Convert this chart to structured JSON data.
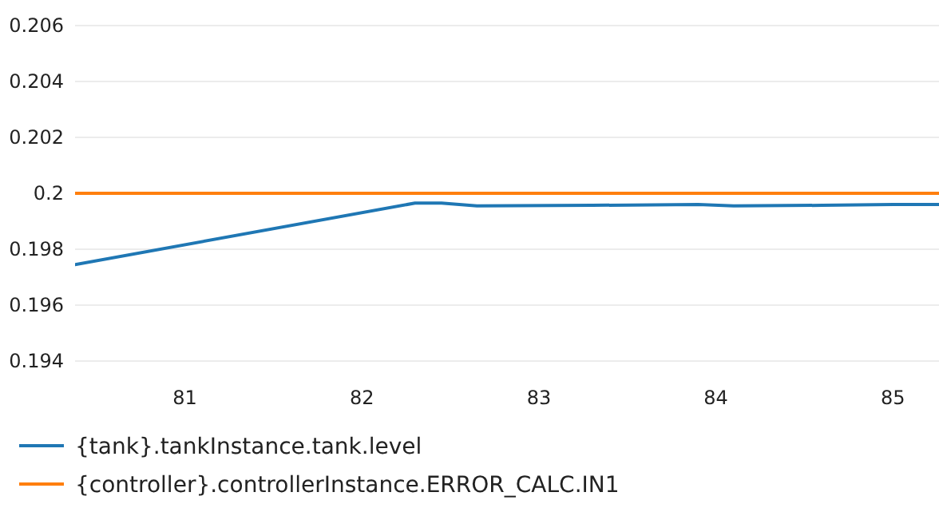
{
  "chart_data": {
    "type": "line",
    "xlim": [
      80.38,
      85.26
    ],
    "xticks": [
      81,
      82,
      83,
      84,
      85
    ],
    "ylim": [
      0.194,
      0.206
    ],
    "yticks": [
      0.194,
      0.196,
      0.198,
      0.2,
      0.202,
      0.204,
      0.206
    ],
    "grid": "y",
    "legend": "bottom",
    "marker": "none",
    "line_style": "solid",
    "series": [
      {
        "name": "{tank}.tankInstance.tank.level",
        "color": "#1f77b4",
        "x": [
          80.38,
          82.3,
          82.45,
          82.65,
          83.3,
          83.9,
          84.1,
          84.6,
          85.0,
          85.26
        ],
        "values": [
          0.19745,
          0.19965,
          0.19965,
          0.19955,
          0.19957,
          0.1996,
          0.19955,
          0.19957,
          0.1996,
          0.1996
        ]
      },
      {
        "name": "{controller}.controllerInstance.ERROR_CALC.IN1",
        "color": "#ff7f0e",
        "x": [
          80.38,
          85.26
        ],
        "values": [
          0.2,
          0.2
        ]
      }
    ]
  }
}
